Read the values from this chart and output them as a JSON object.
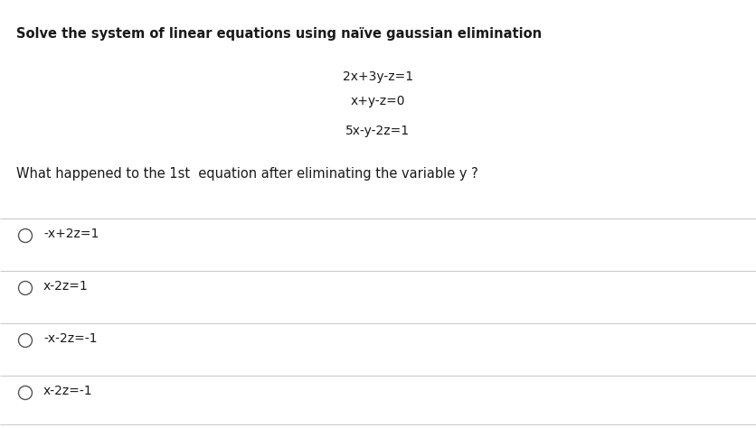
{
  "title": "Solve the system of linear equations using naïve gaussian elimination",
  "equations": [
    "2x+3y-z=1",
    "x+y-z=0",
    "5x-y-2z=1"
  ],
  "question": "What happened to the 1st  equation after eliminating the variable y ?",
  "options": [
    "-x+2z=1",
    "x-2z=1",
    "-x-2z=-1",
    "x-2z=-1"
  ],
  "bg_color": "#ffffff",
  "text_color": "#1a1a1a",
  "line_color": "#cccccc",
  "title_fontsize": 10.5,
  "eq_fontsize": 10,
  "question_fontsize": 10.5,
  "option_fontsize": 10,
  "fig_width": 8.37,
  "fig_height": 4.74,
  "dpi": 100
}
